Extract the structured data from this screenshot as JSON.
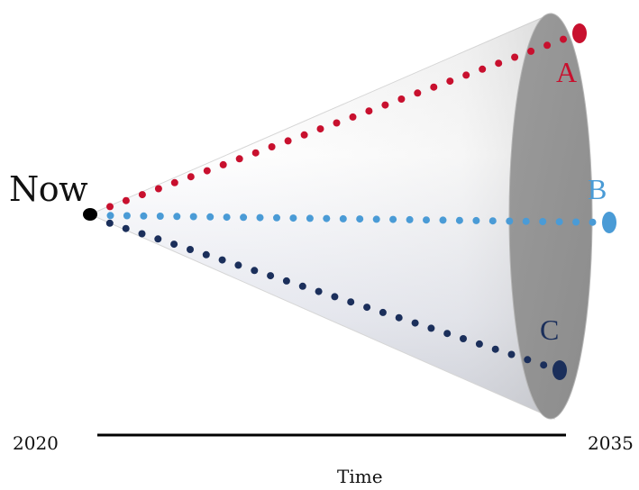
{
  "labels": {
    "now": "Now",
    "scenario_a": "A",
    "scenario_b": "B",
    "scenario_c": "C",
    "start_year": "2020",
    "end_year": "2035",
    "axis_title": "Time"
  },
  "colors": {
    "scenario_a": "#c8102e",
    "scenario_b": "#4a9bd6",
    "scenario_c": "#1b2f5b",
    "origin": "#000000",
    "cone_face": "#969696"
  }
}
